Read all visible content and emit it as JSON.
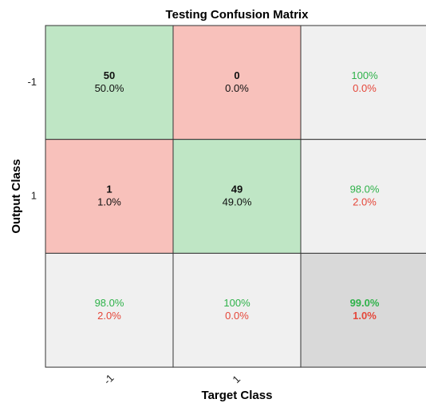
{
  "title": "Testing Confusion Matrix",
  "x_label": "Target Class",
  "y_label": "Output Class",
  "row_labels": [
    "-1",
    "1"
  ],
  "col_labels": [
    "-1",
    "1"
  ],
  "cells": [
    [
      {
        "count": "50",
        "percent": "50.0%"
      },
      {
        "count": "0",
        "percent": "0.0%"
      },
      {
        "correct": "100%",
        "wrong": "0.0%"
      }
    ],
    [
      {
        "count": "1",
        "percent": "1.0%"
      },
      {
        "count": "49",
        "percent": "49.0%"
      },
      {
        "correct": "98.0%",
        "wrong": "2.0%"
      }
    ],
    [
      {
        "correct": "98.0%",
        "wrong": "2.0%"
      },
      {
        "correct": "100%",
        "wrong": "0.0%"
      },
      {
        "correct": "99.0%",
        "wrong": "1.0%"
      }
    ]
  ]
}
